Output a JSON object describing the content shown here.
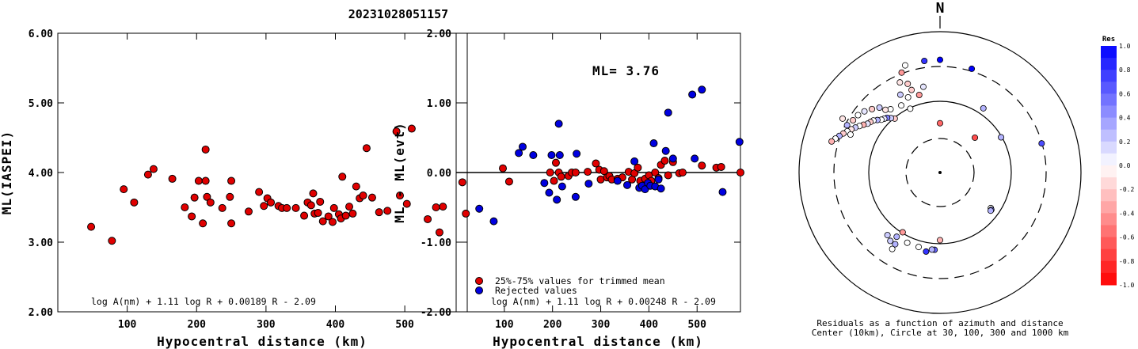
{
  "figure": {
    "title": "20231028051157",
    "colors": {
      "red": "#e00000",
      "blue": "#0000e0",
      "outline": "#000000"
    }
  },
  "chart_data": [
    {
      "type": "scatter",
      "id": "ml-vs-distance",
      "xlabel": "Hypocentral distance (km)",
      "ylabel": "ML(IASPEI)",
      "xlim": [
        0,
        590
      ],
      "ylim": [
        2.0,
        6.0
      ],
      "xticks": [
        100,
        200,
        300,
        400,
        500
      ],
      "yticks": [
        "2.00",
        "3.00",
        "4.00",
        "5.00",
        "6.00"
      ],
      "formula": "log A(nm) + 1.11 log R + 0.00189 R - 2.09",
      "series": [
        {
          "color": "red",
          "points": [
            [
              48,
              3.22
            ],
            [
              78,
              3.02
            ],
            [
              95,
              3.76
            ],
            [
              110,
              3.57
            ],
            [
              130,
              3.97
            ],
            [
              138,
              4.05
            ],
            [
              165,
              3.91
            ],
            [
              183,
              3.5
            ],
            [
              193,
              3.37
            ],
            [
              197,
              3.64
            ],
            [
              203,
              3.88
            ],
            [
              209,
              3.27
            ],
            [
              213,
              4.33
            ],
            [
              213,
              3.88
            ],
            [
              215,
              3.65
            ],
            [
              220,
              3.57
            ],
            [
              237,
              3.49
            ],
            [
              248,
              3.65
            ],
            [
              250,
              3.88
            ],
            [
              250,
              3.27
            ],
            [
              275,
              3.44
            ],
            [
              290,
              3.72
            ],
            [
              297,
              3.52
            ],
            [
              302,
              3.63
            ],
            [
              307,
              3.57
            ],
            [
              318,
              3.52
            ],
            [
              323,
              3.49
            ],
            [
              330,
              3.49
            ],
            [
              343,
              3.49
            ],
            [
              355,
              3.38
            ],
            [
              360,
              3.57
            ],
            [
              365,
              3.53
            ],
            [
              368,
              3.7
            ],
            [
              370,
              3.41
            ],
            [
              375,
              3.42
            ],
            [
              378,
              3.58
            ],
            [
              382,
              3.3
            ],
            [
              390,
              3.37
            ],
            [
              396,
              3.29
            ],
            [
              398,
              3.49
            ],
            [
              405,
              3.4
            ],
            [
              408,
              3.34
            ],
            [
              410,
              3.94
            ],
            [
              415,
              3.38
            ],
            [
              420,
              3.51
            ],
            [
              425,
              3.41
            ],
            [
              430,
              3.8
            ],
            [
              435,
              3.63
            ],
            [
              440,
              3.67
            ],
            [
              445,
              4.35
            ],
            [
              453,
              3.64
            ],
            [
              463,
              3.43
            ],
            [
              475,
              3.45
            ],
            [
              488,
              4.59
            ],
            [
              493,
              3.67
            ],
            [
              503,
              3.55
            ],
            [
              510,
              4.63
            ],
            [
              533,
              3.33
            ],
            [
              545,
              3.5
            ],
            [
              550,
              3.14
            ],
            [
              555,
              3.51
            ],
            [
              583,
              3.86
            ],
            [
              588,
              3.41
            ]
          ]
        }
      ]
    },
    {
      "type": "scatter",
      "id": "residual-vs-distance",
      "xlabel": "Hypocentral distance (km)",
      "ylabel": "ML - ML(evt)",
      "xlim": [
        0,
        590
      ],
      "ylim": [
        -2.0,
        2.0
      ],
      "xticks": [
        100,
        200,
        300,
        400,
        500
      ],
      "yticks": [
        "-2.00",
        "-1.00",
        "0.00",
        "1.00",
        "2.00"
      ],
      "annotation": "ML= 3.76",
      "zero_line": 0,
      "formula": "log A(nm) + 1.11 log R + 0.00248 R - 2.09",
      "legend": {
        "items": [
          {
            "label": "25%-75% values for trimmed mean",
            "color": "red"
          },
          {
            "label": "Rejected values",
            "color": "blue"
          }
        ]
      },
      "series": [
        {
          "name": "25%-75% values for trimmed mean",
          "color": "red",
          "points": [
            [
              97,
              0.06
            ],
            [
              110,
              -0.13
            ],
            [
              195,
              0.0
            ],
            [
              203,
              -0.12
            ],
            [
              207,
              0.14
            ],
            [
              213,
              0.0
            ],
            [
              218,
              -0.06
            ],
            [
              233,
              -0.05
            ],
            [
              240,
              0.0
            ],
            [
              248,
              0.0
            ],
            [
              273,
              0.01
            ],
            [
              290,
              0.13
            ],
            [
              297,
              0.04
            ],
            [
              300,
              -0.1
            ],
            [
              307,
              0.02
            ],
            [
              313,
              -0.07
            ],
            [
              318,
              -0.05
            ],
            [
              323,
              -0.1
            ],
            [
              335,
              -0.09
            ],
            [
              345,
              -0.07
            ],
            [
              358,
              0.01
            ],
            [
              365,
              -0.1
            ],
            [
              370,
              -0.01
            ],
            [
              377,
              0.07
            ],
            [
              382,
              -0.12
            ],
            [
              392,
              -0.09
            ],
            [
              400,
              -0.04
            ],
            [
              405,
              -0.12
            ],
            [
              413,
              0.0
            ],
            [
              420,
              -0.08
            ],
            [
              425,
              0.11
            ],
            [
              433,
              0.17
            ],
            [
              440,
              -0.04
            ],
            [
              450,
              0.15
            ],
            [
              463,
              -0.01
            ],
            [
              470,
              0.0
            ],
            [
              510,
              0.1
            ],
            [
              540,
              0.07
            ],
            [
              550,
              0.08
            ],
            [
              590,
              0.0
            ]
          ]
        },
        {
          "name": "Rejected values",
          "color": "blue",
          "points": [
            [
              48,
              -0.52
            ],
            [
              78,
              -0.7
            ],
            [
              130,
              0.28
            ],
            [
              138,
              0.37
            ],
            [
              160,
              0.25
            ],
            [
              183,
              -0.15
            ],
            [
              193,
              -0.29
            ],
            [
              198,
              0.25
            ],
            [
              209,
              -0.39
            ],
            [
              213,
              0.7
            ],
            [
              215,
              0.25
            ],
            [
              220,
              -0.2
            ],
            [
              248,
              -0.35
            ],
            [
              250,
              0.27
            ],
            [
              275,
              -0.16
            ],
            [
              335,
              -0.12
            ],
            [
              355,
              -0.18
            ],
            [
              370,
              0.16
            ],
            [
              380,
              -0.22
            ],
            [
              386,
              -0.19
            ],
            [
              392,
              -0.24
            ],
            [
              398,
              -0.15
            ],
            [
              403,
              -0.19
            ],
            [
              410,
              0.42
            ],
            [
              413,
              -0.2
            ],
            [
              420,
              -0.1
            ],
            [
              425,
              -0.23
            ],
            [
              435,
              0.31
            ],
            [
              440,
              0.86
            ],
            [
              450,
              0.2
            ],
            [
              490,
              1.12
            ],
            [
              495,
              0.2
            ],
            [
              510,
              1.19
            ],
            [
              553,
              -0.28
            ],
            [
              588,
              0.44
            ]
          ]
        }
      ]
    }
  ],
  "polar": {
    "north_label": "N",
    "caption_line1": "Residuals as a function of azimuth and distance",
    "caption_line2": "Center (10km), Circle at 30, 100, 300 and 1000 km",
    "colorbar": {
      "title": "Res",
      "ticks": [
        "1.0",
        "0.8",
        "0.6",
        "0.4",
        "0.2",
        "0.0",
        "-0.2",
        "-0.4",
        "-0.6",
        "-0.8",
        "-1.0"
      ],
      "range": [
        -1.0,
        1.0
      ]
    },
    "rings_km": [
      30,
      100,
      300,
      1000
    ],
    "stations": [
      [
        320,
        0.5,
        -0.2
      ],
      [
        318,
        0.52,
        0.2
      ],
      [
        316,
        0.54,
        0.5
      ],
      [
        314,
        0.55,
        0.1
      ],
      [
        312,
        0.56,
        0.0
      ],
      [
        310,
        0.58,
        0.3
      ],
      [
        308,
        0.6,
        0.0
      ],
      [
        306,
        0.61,
        -0.2
      ],
      [
        304,
        0.62,
        0.1
      ],
      [
        302,
        0.64,
        -0.3
      ],
      [
        300,
        0.66,
        0.0
      ],
      [
        298,
        0.68,
        0.2
      ],
      [
        296,
        0.7,
        -0.1
      ],
      [
        294,
        0.72,
        0.0
      ],
      [
        292,
        0.74,
        -0.2
      ],
      [
        290,
        0.76,
        0.3
      ],
      [
        288,
        0.78,
        0.0
      ],
      [
        286,
        0.8,
        -0.3
      ],
      [
        322,
        0.57,
        0.0
      ],
      [
        319,
        0.59,
        -0.1
      ],
      [
        317,
        0.63,
        0.2
      ],
      [
        313,
        0.66,
        -0.2
      ],
      [
        309,
        0.69,
        0.1
      ],
      [
        305,
        0.71,
        0.0
      ],
      [
        301,
        0.72,
        -0.2
      ],
      [
        297,
        0.74,
        0.3
      ],
      [
        293,
        0.69,
        0.0
      ],
      [
        299,
        0.79,
        -0.1
      ],
      [
        330,
        0.55,
        0.0
      ],
      [
        333,
        0.62,
        0.2
      ],
      [
        336,
        0.7,
        -0.1
      ],
      [
        339,
        0.76,
        -0.4
      ],
      [
        342,
        0.8,
        0.0
      ],
      [
        337,
        0.58,
        0.0
      ],
      [
        341,
        0.62,
        -0.2
      ],
      [
        345,
        0.57,
        -0.4
      ],
      [
        349,
        0.62,
        0.1
      ],
      [
        335,
        0.5,
        0.0
      ],
      [
        340,
        0.67,
        -0.2
      ],
      [
        352,
        0.8,
        0.8
      ],
      [
        0,
        0.8,
        1.0
      ],
      [
        17,
        0.77,
        1.0
      ],
      [
        34,
        0.55,
        0.3
      ],
      [
        60,
        0.5,
        0.3
      ],
      [
        74,
        0.75,
        0.7
      ],
      [
        0,
        0.35,
        -0.6
      ],
      [
        45,
        0.35,
        -0.7
      ],
      [
        125,
        0.44,
        0.0
      ],
      [
        126,
        0.45,
        0.5
      ],
      [
        127,
        0.45,
        0.3
      ],
      [
        180,
        0.48,
        -0.3
      ],
      [
        184,
        0.55,
        0.6
      ],
      [
        186,
        0.55,
        0.3
      ],
      [
        190,
        0.57,
        0.8
      ],
      [
        196,
        0.55,
        0.0
      ],
      [
        205,
        0.55,
        0.0
      ],
      [
        212,
        0.5,
        -0.4
      ],
      [
        214,
        0.55,
        0.3
      ],
      [
        212,
        0.6,
        0.3
      ],
      [
        216,
        0.6,
        0.2
      ],
      [
        212,
        0.64,
        0.0
      ],
      [
        220,
        0.58,
        0.2
      ]
    ]
  }
}
